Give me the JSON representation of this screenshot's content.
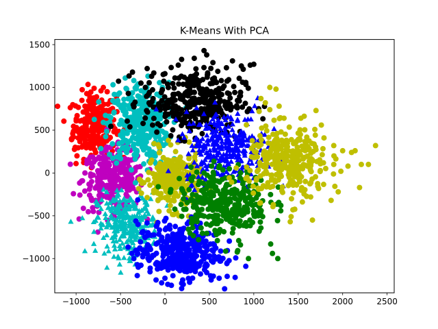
{
  "chart_data": {
    "type": "scatter",
    "title": "K-Means With PCA",
    "xlabel": "",
    "ylabel": "",
    "xlim": [
      -1240,
      2580
    ],
    "ylim": [
      -1400,
      1560
    ],
    "x_ticks": [
      -1000,
      -500,
      0,
      500,
      1000,
      1500,
      2000,
      2500
    ],
    "y_ticks": [
      -1000,
      -500,
      0,
      500,
      1000,
      1500
    ],
    "x_tick_labels": [
      "−1000",
      "−500",
      "0",
      "500",
      "1000",
      "1500",
      "2000",
      "2500"
    ],
    "y_tick_labels": [
      "−1000",
      "−500",
      "0",
      "500",
      "1000",
      "1500"
    ],
    "grid": false,
    "legend": "none",
    "clusters": [
      {
        "color": "#ff0000",
        "marker": "circle",
        "center": [
          -790,
          560
        ],
        "spread": [
          120,
          190
        ],
        "count": 260,
        "points": [
          [
            -1010,
            300
          ],
          [
            -1030,
            420
          ],
          [
            -990,
            200
          ],
          [
            -1000,
            110
          ],
          [
            -820,
            870
          ],
          [
            -720,
            960
          ],
          [
            -650,
            950
          ],
          [
            -900,
            780
          ],
          [
            -1050,
            390
          ]
        ]
      },
      {
        "color": "#bf00bf",
        "marker": "circle",
        "center": [
          -580,
          -80
        ],
        "spread": [
          170,
          180
        ],
        "count": 260,
        "points": [
          [
            -900,
            0
          ],
          [
            -840,
            -150
          ],
          [
            -780,
            -320
          ],
          [
            -620,
            200
          ],
          [
            -480,
            -360
          ],
          [
            -330,
            60
          ],
          [
            -880,
            110
          ]
        ]
      },
      {
        "color": "#00bfbf",
        "marker": "circle",
        "center": [
          -300,
          570
        ],
        "spread": [
          170,
          240
        ],
        "count": 320,
        "points": [
          [
            -430,
            980
          ],
          [
            -350,
            1080
          ],
          [
            -300,
            1040
          ],
          [
            -450,
            300
          ],
          [
            -200,
            220
          ],
          [
            -90,
            920
          ],
          [
            -520,
            800
          ]
        ]
      },
      {
        "color": "#00bfbf",
        "marker": "triangle",
        "center": [
          -420,
          -600
        ],
        "spread": [
          170,
          180
        ],
        "count": 280,
        "points": [
          [
            -760,
            -520
          ],
          [
            -720,
            -650
          ],
          [
            -580,
            -800
          ],
          [
            -400,
            -1000
          ],
          [
            -390,
            -1030
          ],
          [
            -200,
            -450
          ],
          [
            -780,
            -560
          ],
          [
            -640,
            -410
          ]
        ]
      },
      {
        "color": "#bfbf00",
        "marker": "circle",
        "center": [
          100,
          -80
        ],
        "spread": [
          150,
          170
        ],
        "count": 260,
        "points": [
          [
            -190,
            -80
          ],
          [
            300,
            -120
          ],
          [
            120,
            250
          ],
          [
            60,
            -380
          ],
          [
            -150,
            150
          ],
          [
            330,
            40
          ]
        ]
      },
      {
        "color": "#000000",
        "marker": "circle",
        "center": [
          320,
          830
        ],
        "spread": [
          280,
          190
        ],
        "count": 340,
        "points": [
          [
            -200,
            1220
          ],
          [
            -150,
            1130
          ],
          [
            -270,
            1050
          ],
          [
            0,
            1160
          ],
          [
            150,
            1260
          ],
          [
            330,
            1340
          ],
          [
            440,
            1430
          ],
          [
            470,
            1380
          ],
          [
            540,
            1290
          ],
          [
            760,
            1310
          ],
          [
            860,
            1250
          ],
          [
            960,
            1260
          ],
          [
            1000,
            1270
          ],
          [
            250,
            580
          ],
          [
            700,
            560
          ],
          [
            -220,
            1000
          ]
        ]
      },
      {
        "color": "#0000ff",
        "marker": "triangle",
        "center": [
          680,
          300
        ],
        "spread": [
          230,
          210
        ],
        "count": 320,
        "points": [
          [
            330,
            120
          ],
          [
            400,
            560
          ],
          [
            900,
            620
          ],
          [
            980,
            720
          ],
          [
            1010,
            780
          ],
          [
            820,
            380
          ],
          [
            560,
            10
          ],
          [
            1080,
            340
          ],
          [
            360,
            330
          ]
        ]
      },
      {
        "color": "#0000ff",
        "marker": "circle",
        "center": [
          150,
          -920
        ],
        "spread": [
          230,
          170
        ],
        "count": 340,
        "points": [
          [
            -350,
            -1000
          ],
          [
            -300,
            -1100
          ],
          [
            -100,
            -1250
          ],
          [
            0,
            -1230
          ],
          [
            200,
            -1250
          ],
          [
            400,
            -1180
          ],
          [
            520,
            -1250
          ],
          [
            610,
            -1230
          ],
          [
            790,
            -1220
          ],
          [
            700,
            -1050
          ],
          [
            -80,
            -580
          ],
          [
            330,
            -600
          ]
        ]
      },
      {
        "color": "#008000",
        "marker": "circle",
        "center": [
          660,
          -330
        ],
        "spread": [
          250,
          190
        ],
        "count": 320,
        "points": [
          [
            310,
            -580
          ],
          [
            590,
            -790
          ],
          [
            760,
            -700
          ],
          [
            830,
            -790
          ],
          [
            940,
            -1000
          ],
          [
            1190,
            -830
          ],
          [
            1210,
            -940
          ],
          [
            1270,
            -1000
          ],
          [
            1100,
            -510
          ],
          [
            1000,
            -480
          ],
          [
            440,
            0
          ],
          [
            900,
            -80
          ],
          [
            850,
            -840
          ],
          [
            560,
            -550
          ]
        ]
      },
      {
        "color": "#bfbf00",
        "marker": "circle",
        "center": [
          1380,
          120
        ],
        "spread": [
          230,
          200
        ],
        "count": 320,
        "points": [
          [
            1180,
            1000
          ],
          [
            1080,
            870
          ],
          [
            1180,
            740
          ],
          [
            1340,
            640
          ],
          [
            1530,
            640
          ],
          [
            1700,
            730
          ],
          [
            1760,
            560
          ],
          [
            1790,
            410
          ],
          [
            1900,
            320
          ],
          [
            2000,
            260
          ],
          [
            2100,
            240
          ],
          [
            2210,
            100
          ],
          [
            2290,
            100
          ],
          [
            2370,
            320
          ],
          [
            2190,
            -170
          ],
          [
            1950,
            -220
          ],
          [
            1870,
            -320
          ],
          [
            1640,
            -280
          ],
          [
            1660,
            -550
          ],
          [
            1440,
            -430
          ],
          [
            1420,
            -510
          ],
          [
            1410,
            -570
          ],
          [
            1220,
            -370
          ],
          [
            1980,
            20
          ],
          [
            2060,
            80
          ],
          [
            2140,
            260
          ],
          [
            1900,
            100
          ],
          [
            1250,
            980
          ],
          [
            1130,
            820
          ],
          [
            1060,
            720
          ]
        ]
      }
    ]
  }
}
